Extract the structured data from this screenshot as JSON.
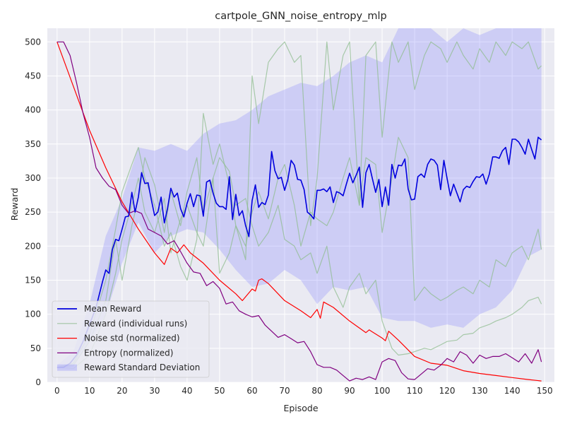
{
  "chart_data": {
    "type": "line",
    "title": "cartpole_GNN_noise_entropy_mlp",
    "xlabel": "Episode",
    "ylabel": "Reward",
    "xlim": [
      -3,
      153
    ],
    "ylim": [
      0,
      520
    ],
    "xticks": [
      0,
      10,
      20,
      30,
      40,
      50,
      60,
      70,
      80,
      90,
      100,
      110,
      120,
      130,
      140,
      150
    ],
    "yticks": [
      0,
      50,
      100,
      150,
      200,
      250,
      300,
      350,
      400,
      450,
      500
    ],
    "grid": true,
    "legend_position": "lower-left",
    "colors": {
      "mean": "#0000dd",
      "runs": "#8fbc8f",
      "noise": "#ff0000",
      "entropy": "#800080",
      "band": "#8080ff",
      "plot_bg": "#eaeaf2",
      "grid": "#ffffff"
    },
    "legend": [
      {
        "label": "Mean Reward",
        "kind": "line",
        "color": "#0000dd"
      },
      {
        "label": "Reward (individual runs)",
        "kind": "line",
        "color": "#8fbc8f"
      },
      {
        "label": "Noise std (normalized)",
        "kind": "line",
        "color": "#ff0000"
      },
      {
        "label": "Entropy (normalized)",
        "kind": "line",
        "color": "#800080"
      },
      {
        "label": "Reward Standard Deviation",
        "kind": "patch",
        "color": "#8080ff"
      }
    ],
    "mean_reward": {
      "x": [
        0,
        2,
        4,
        6,
        8,
        10,
        12,
        14,
        15,
        16,
        17,
        18,
        19,
        20,
        21,
        22,
        23,
        24,
        25,
        26,
        27,
        28,
        29,
        30,
        31,
        32,
        33,
        34,
        35,
        36,
        37,
        38,
        39,
        40,
        41,
        42,
        43,
        44,
        45,
        46,
        47,
        48,
        49,
        50,
        51,
        52,
        53,
        54,
        55,
        56,
        57,
        58,
        59,
        60,
        61,
        62,
        63,
        64,
        65,
        66,
        67,
        68,
        69,
        70,
        71,
        72,
        73,
        74,
        75,
        76,
        77,
        78,
        79,
        80,
        81,
        82,
        83,
        84,
        85,
        86,
        87,
        88,
        89,
        90,
        91,
        92,
        93,
        94,
        95,
        96,
        97,
        98,
        99,
        100,
        101,
        102,
        103,
        104,
        105,
        106,
        107,
        108,
        109,
        110,
        111,
        112,
        113,
        114,
        115,
        116,
        117,
        118,
        119,
        120,
        121,
        122,
        123,
        124,
        125,
        126,
        127,
        128,
        129,
        130,
        131,
        132,
        133,
        134,
        135,
        136,
        137,
        138,
        139,
        140,
        141,
        142,
        143,
        144,
        145,
        146,
        147,
        148,
        149
      ],
      "y": [
        22,
        22,
        28,
        40,
        60,
        85,
        110,
        148,
        165,
        160,
        195,
        210,
        208,
        225,
        243,
        244,
        279,
        250,
        272,
        308,
        292,
        293,
        268,
        245,
        250,
        272,
        234,
        256,
        285,
        272,
        278,
        255,
        243,
        263,
        277,
        258,
        275,
        274,
        244,
        294,
        297,
        278,
        263,
        258,
        258,
        254,
        302,
        239,
        276,
        245,
        252,
        230,
        214,
        267,
        290,
        257,
        264,
        261,
        275,
        339,
        311,
        299,
        301,
        282,
        298,
        326,
        319,
        298,
        297,
        283,
        250,
        246,
        240,
        282,
        282,
        284,
        280,
        287,
        264,
        280,
        278,
        274,
        291,
        307,
        293,
        304,
        316,
        257,
        308,
        320,
        299,
        279,
        298,
        258,
        287,
        260,
        320,
        300,
        319,
        318,
        328,
        284,
        268,
        269,
        302,
        306,
        301,
        320,
        328,
        326,
        319,
        283,
        326,
        299,
        274,
        291,
        278,
        265,
        283,
        288,
        286,
        295,
        302,
        301,
        306,
        291,
        306,
        331,
        331,
        329,
        340,
        345,
        320,
        357,
        357,
        353,
        345,
        335,
        357,
        342,
        328,
        360,
        356
      ]
    },
    "std_band": {
      "x": [
        0,
        5,
        10,
        15,
        20,
        25,
        30,
        35,
        40,
        45,
        50,
        55,
        60,
        65,
        70,
        75,
        80,
        85,
        90,
        95,
        100,
        105,
        110,
        115,
        120,
        125,
        130,
        135,
        140,
        145,
        149
      ],
      "upper": [
        25,
        45,
        115,
        215,
        270,
        345,
        340,
        350,
        340,
        365,
        380,
        385,
        400,
        420,
        430,
        440,
        435,
        450,
        470,
        480,
        470,
        520,
        520,
        520,
        500,
        520,
        510,
        520,
        520,
        520,
        520
      ],
      "lower": [
        20,
        22,
        60,
        100,
        175,
        235,
        190,
        215,
        225,
        220,
        195,
        165,
        140,
        145,
        165,
        150,
        115,
        140,
        135,
        140,
        95,
        90,
        90,
        80,
        85,
        80,
        100,
        110,
        135,
        185,
        195
      ]
    },
    "runs": [
      {
        "x": [
          0,
          5,
          10,
          15,
          18,
          20,
          23,
          25,
          27,
          30,
          33,
          35,
          38,
          40,
          43,
          45,
          48,
          50,
          53,
          55,
          58,
          60,
          62,
          65,
          68,
          70,
          73,
          75,
          78,
          80,
          83,
          85,
          88,
          90,
          93,
          95,
          98,
          100,
          103,
          105,
          108,
          110,
          113,
          115,
          118,
          120,
          123,
          125,
          128,
          130,
          133,
          135,
          138,
          140,
          143,
          145,
          148,
          149
        ],
        "y": [
          22,
          28,
          70,
          150,
          225,
          280,
          320,
          345,
          300,
          260,
          200,
          220,
          170,
          150,
          210,
          395,
          320,
          350,
          290,
          230,
          180,
          450,
          380,
          470,
          490,
          500,
          470,
          480,
          230,
          300,
          500,
          400,
          480,
          500,
          260,
          480,
          500,
          360,
          500,
          470,
          500,
          430,
          480,
          500,
          490,
          470,
          500,
          480,
          460,
          490,
          470,
          500,
          480,
          500,
          490,
          500,
          460,
          465
        ]
      },
      {
        "x": [
          0,
          5,
          10,
          15,
          18,
          20,
          23,
          25,
          27,
          30,
          33,
          35,
          38,
          40,
          43,
          45,
          48,
          50,
          53,
          55,
          58,
          60,
          62,
          65,
          68,
          70,
          73,
          75,
          78,
          80,
          83,
          85,
          88,
          90,
          93,
          95,
          98,
          100,
          103,
          105,
          108,
          110,
          113,
          115,
          118,
          120,
          123,
          125,
          128,
          130,
          133,
          135,
          138,
          140,
          143,
          145,
          148,
          149
        ],
        "y": [
          22,
          25,
          60,
          120,
          210,
          150,
          230,
          270,
          330,
          290,
          220,
          280,
          230,
          280,
          330,
          250,
          300,
          330,
          310,
          260,
          270,
          230,
          200,
          220,
          260,
          210,
          200,
          180,
          190,
          160,
          200,
          140,
          110,
          140,
          160,
          130,
          150,
          90,
          50,
          40,
          42,
          45,
          50,
          48,
          55,
          60,
          62,
          70,
          72,
          80,
          85,
          90,
          95,
          100,
          110,
          120,
          125,
          115
        ]
      },
      {
        "x": [
          0,
          5,
          10,
          15,
          18,
          20,
          23,
          25,
          27,
          30,
          33,
          35,
          38,
          40,
          43,
          45,
          48,
          50,
          53,
          55,
          58,
          60,
          62,
          65,
          68,
          70,
          73,
          75,
          78,
          80,
          83,
          85,
          88,
          90,
          93,
          95,
          98,
          100,
          103,
          105,
          108,
          110,
          113,
          115,
          118,
          120,
          123,
          125,
          128,
          130,
          133,
          135,
          138,
          140,
          143,
          145,
          148,
          149
        ],
        "y": [
          22,
          20,
          40,
          100,
          160,
          210,
          260,
          300,
          250,
          220,
          270,
          190,
          240,
          260,
          220,
          200,
          300,
          160,
          190,
          230,
          200,
          250,
          280,
          240,
          300,
          320,
          260,
          200,
          250,
          240,
          230,
          250,
          300,
          330,
          260,
          330,
          320,
          220,
          300,
          360,
          330,
          120,
          140,
          130,
          120,
          125,
          135,
          140,
          130,
          150,
          140,
          180,
          170,
          190,
          200,
          180,
          225,
          195
        ]
      }
    ],
    "noise_std": {
      "x": [
        0,
        5,
        10,
        15,
        20,
        25,
        30,
        33,
        35,
        37,
        39,
        41,
        45,
        50,
        55,
        57,
        60,
        61,
        62,
        63,
        65,
        70,
        75,
        78,
        80,
        81,
        82,
        85,
        90,
        95,
        96,
        97,
        100,
        101,
        102,
        105,
        110,
        115,
        120,
        125,
        130,
        135,
        140,
        145,
        149
      ],
      "y": [
        500,
        435,
        370,
        315,
        265,
        225,
        190,
        173,
        197,
        190,
        202,
        190,
        175,
        150,
        130,
        120,
        137,
        134,
        150,
        152,
        145,
        120,
        105,
        95,
        107,
        94,
        118,
        110,
        90,
        73,
        77,
        74,
        65,
        61,
        75,
        62,
        38,
        28,
        25,
        17,
        13,
        10,
        7,
        4,
        2
      ]
    },
    "entropy": {
      "x": [
        0,
        2,
        4,
        6,
        8,
        10,
        12,
        14,
        16,
        18,
        20,
        22,
        24,
        26,
        28,
        30,
        32,
        34,
        36,
        38,
        40,
        42,
        44,
        46,
        48,
        50,
        52,
        54,
        56,
        58,
        60,
        62,
        64,
        66,
        68,
        70,
        72,
        74,
        76,
        78,
        80,
        82,
        84,
        86,
        88,
        90,
        92,
        94,
        96,
        98,
        100,
        102,
        104,
        106,
        108,
        110,
        112,
        114,
        116,
        118,
        120,
        122,
        124,
        126,
        128,
        130,
        132,
        134,
        136,
        138,
        140,
        142,
        144,
        146,
        148,
        149
      ],
      "y": [
        500,
        500,
        480,
        440,
        395,
        360,
        315,
        300,
        288,
        283,
        260,
        248,
        252,
        248,
        225,
        220,
        215,
        203,
        208,
        192,
        175,
        162,
        160,
        142,
        148,
        138,
        115,
        118,
        105,
        100,
        96,
        98,
        84,
        75,
        66,
        70,
        64,
        58,
        60,
        45,
        26,
        22,
        22,
        18,
        10,
        2,
        6,
        4,
        8,
        4,
        30,
        35,
        32,
        14,
        5,
        4,
        12,
        20,
        18,
        25,
        35,
        30,
        45,
        40,
        28,
        40,
        35,
        38,
        38,
        42,
        36,
        30,
        42,
        28,
        48,
        30
      ]
    }
  }
}
